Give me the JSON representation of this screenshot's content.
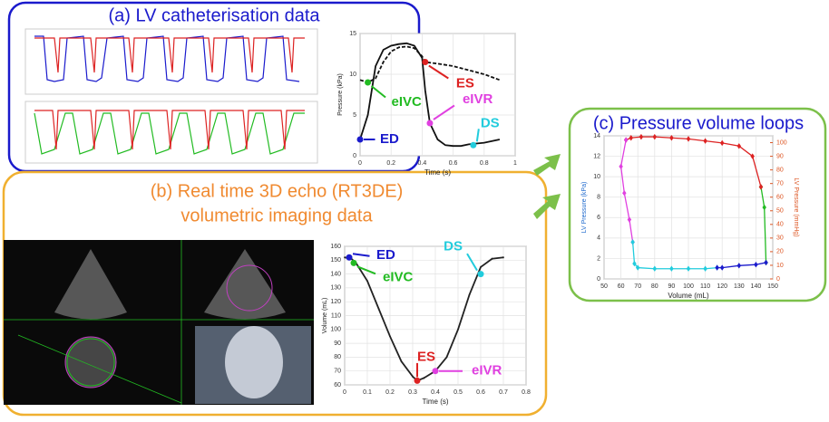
{
  "panels": [
    {
      "title": "(a) LV catheterisation data"
    },
    {
      "title": "(b) Real time 3D echo (RT3DE)",
      "subtitle": "volumetric imaging data"
    },
    {
      "title": "(c) Pressure volume loops"
    }
  ],
  "chart_data": [
    {
      "type": "line",
      "xlabel": "Time (s)",
      "ylabel": "Pressure (kPa)",
      "xlim": [
        0,
        1
      ],
      "xticks": [
        0,
        0.2,
        0.4,
        0.6,
        0.8,
        1
      ],
      "ylim": [
        0,
        15
      ],
      "yticks": [
        0,
        5,
        10,
        15
      ],
      "grid": true,
      "markers": false,
      "series": [
        {
          "color": "#111111",
          "line_style": "solid",
          "x": [
            0,
            0.05,
            0.1,
            0.15,
            0.2,
            0.25,
            0.3,
            0.35,
            0.4,
            0.42,
            0.45,
            0.5,
            0.55,
            0.6,
            0.65,
            0.7,
            0.8,
            0.9
          ],
          "values": [
            2,
            5,
            11,
            13,
            13.5,
            13.7,
            13.8,
            13.5,
            12,
            8,
            4,
            2,
            1.3,
            1.2,
            1.2,
            1.4,
            1.6,
            2
          ]
        },
        {
          "color": "#111111",
          "line_style": "dashed",
          "x": [
            0,
            0.05,
            0.1,
            0.15,
            0.2,
            0.25,
            0.3,
            0.35,
            0.4,
            0.42,
            0.5,
            0.6,
            0.7,
            0.8,
            0.9
          ],
          "values": [
            9.3,
            9,
            9.5,
            11.5,
            12.8,
            13.3,
            13.4,
            13.2,
            12.2,
            11.5,
            11.3,
            11,
            10.5,
            10,
            9.3
          ]
        }
      ],
      "annotations": [
        {
          "label": "ED",
          "x": 0,
          "y": 2,
          "color": "#1a1acc"
        },
        {
          "label": "eIVC",
          "x": 0.05,
          "y": 9,
          "color": "#22bb22"
        },
        {
          "label": "ES",
          "x": 0.42,
          "y": 11.5,
          "color": "#dd2222"
        },
        {
          "label": "eIVR",
          "x": 0.45,
          "y": 4,
          "color": "#e040e0"
        },
        {
          "label": "DS",
          "x": 0.73,
          "y": 1.3,
          "color": "#22ccdd"
        }
      ]
    },
    {
      "type": "line",
      "xlabel": "Time (s)",
      "ylabel": "Volume (mL)",
      "xlim": [
        0,
        0.8
      ],
      "xticks": [
        0,
        0.1,
        0.2,
        0.3,
        0.4,
        0.5,
        0.6,
        0.7,
        0.8
      ],
      "ylim": [
        60,
        160
      ],
      "yticks": [
        60,
        70,
        80,
        90,
        100,
        110,
        120,
        130,
        140,
        150,
        160
      ],
      "grid": true,
      "markers": true,
      "series": [
        {
          "color": "#222222",
          "line_style": "solid",
          "x": [
            0,
            0.03,
            0.05,
            0.1,
            0.15,
            0.2,
            0.25,
            0.3,
            0.32,
            0.35,
            0.4,
            0.45,
            0.5,
            0.55,
            0.6,
            0.65,
            0.7
          ],
          "values": [
            152,
            151,
            148,
            135,
            115,
            95,
            77,
            66,
            63,
            65,
            70,
            80,
            100,
            125,
            145,
            151,
            152
          ]
        }
      ],
      "annotations": [
        {
          "label": "ED",
          "x": 0.02,
          "y": 152,
          "color": "#1a1acc"
        },
        {
          "label": "eIVC",
          "x": 0.04,
          "y": 148,
          "color": "#22bb22"
        },
        {
          "label": "ES",
          "x": 0.32,
          "y": 63,
          "color": "#dd2222"
        },
        {
          "label": "eIVR",
          "x": 0.4,
          "y": 70,
          "color": "#e040e0"
        },
        {
          "label": "DS",
          "x": 0.6,
          "y": 140,
          "color": "#22ccdd"
        }
      ]
    },
    {
      "type": "line",
      "xlabel": "Volume (mL)",
      "ylabel": "LV Pressure (kPa)",
      "y2label": "LV Pressure (mmHg)",
      "xlim": [
        50,
        150
      ],
      "xticks": [
        50,
        60,
        70,
        80,
        90,
        100,
        110,
        120,
        130,
        140,
        150
      ],
      "ylim": [
        0,
        14
      ],
      "yticks": [
        0,
        2,
        4,
        6,
        8,
        10,
        12,
        14
      ],
      "y2lim": [
        0,
        105
      ],
      "y2ticks": [
        0,
        10,
        20,
        30,
        40,
        50,
        60,
        70,
        80,
        90,
        100
      ],
      "grid": true,
      "markers": true,
      "series": [
        {
          "color": "#22bb22",
          "line_style": "solid",
          "x": [
            146,
            145,
            143
          ],
          "values": [
            1.6,
            7,
            9
          ]
        },
        {
          "color": "#dd2222",
          "line_style": "solid",
          "x": [
            143,
            138,
            130,
            120,
            110,
            100,
            90,
            80,
            72,
            66,
            63
          ],
          "values": [
            9,
            12,
            13,
            13.3,
            13.5,
            13.7,
            13.8,
            13.9,
            13.9,
            13.8,
            13.6
          ]
        },
        {
          "color": "#e040e0",
          "line_style": "solid",
          "x": [
            63,
            60,
            62,
            65,
            67
          ],
          "values": [
            13.6,
            11,
            8.4,
            5.8,
            3.6
          ]
        },
        {
          "color": "#22ccdd",
          "line_style": "solid",
          "x": [
            67,
            68,
            70,
            80,
            90,
            100,
            110,
            117
          ],
          "values": [
            3.6,
            1.5,
            1.1,
            1,
            1,
            1,
            1,
            1.1
          ]
        },
        {
          "color": "#1a1acc",
          "line_style": "solid",
          "x": [
            117,
            120,
            130,
            140,
            146
          ],
          "values": [
            1.1,
            1.1,
            1.3,
            1.4,
            1.6
          ]
        }
      ]
    }
  ]
}
